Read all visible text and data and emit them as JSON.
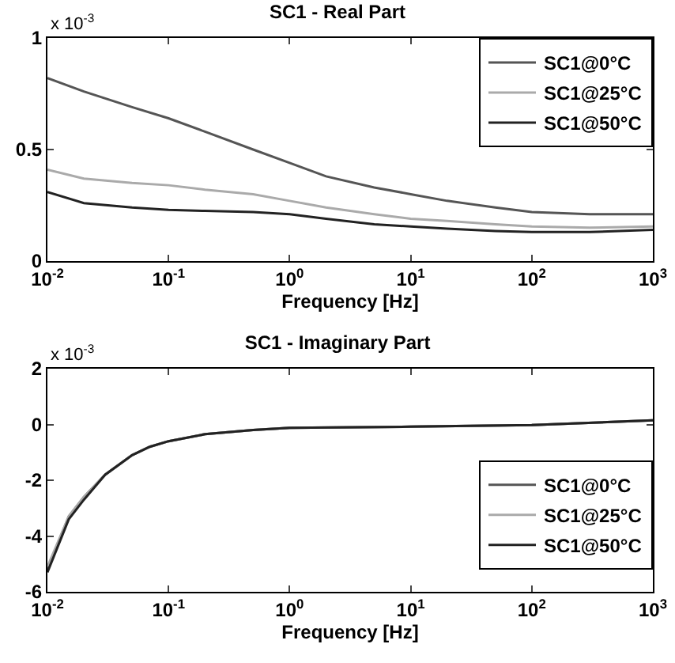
{
  "chart_data": [
    {
      "type": "line",
      "title": "SC1 - Real Part",
      "xlabel": "Frequency [Hz]",
      "annotations": [
        "x 10$^{-3}$"
      ],
      "log": "x",
      "grid": false,
      "legend": "top right",
      "marker": "none",
      "line_style": "solid",
      "xlim": [
        0.01,
        1000
      ],
      "xticks": [
        {
          "value": 0.01,
          "label": "10$^{-2}$"
        },
        {
          "value": 0.1,
          "label": "10$^{-1}$"
        },
        {
          "value": 1,
          "label": "10$^{0}$"
        },
        {
          "value": 10,
          "label": "10$^{1}$"
        },
        {
          "value": 100,
          "label": "10$^{2}$"
        },
        {
          "value": 1000,
          "label": "10$^{3}$"
        }
      ],
      "ylim": [
        0,
        1
      ],
      "yticks": [
        0,
        0.5,
        1
      ],
      "x": [
        0.01,
        0.02,
        0.05,
        0.1,
        0.2,
        0.5,
        1,
        2,
        5,
        10,
        20,
        50,
        100,
        300,
        1000
      ],
      "series": [
        {
          "name": "SC1@0°C",
          "color": "#555555",
          "values": [
            0.82,
            0.76,
            0.69,
            0.64,
            0.58,
            0.5,
            0.44,
            0.38,
            0.33,
            0.3,
            0.27,
            0.24,
            0.22,
            0.21,
            0.21
          ]
        },
        {
          "name": "SC1@25°C",
          "color": "#aaaaaa",
          "values": [
            0.41,
            0.37,
            0.35,
            0.34,
            0.32,
            0.3,
            0.27,
            0.24,
            0.21,
            0.19,
            0.18,
            0.165,
            0.155,
            0.15,
            0.155
          ]
        },
        {
          "name": "SC1@50°C",
          "color": "#222222",
          "values": [
            0.31,
            0.26,
            0.24,
            0.23,
            0.225,
            0.22,
            0.21,
            0.19,
            0.165,
            0.155,
            0.145,
            0.135,
            0.13,
            0.13,
            0.14
          ]
        }
      ]
    },
    {
      "type": "line",
      "title": "SC1 - Imaginary Part",
      "xlabel": "Frequency [Hz]",
      "annotations": [
        "x 10$^{-3}$"
      ],
      "log": "x",
      "grid": false,
      "legend": "right",
      "marker": "none",
      "line_style": "solid",
      "xlim": [
        0.01,
        1000
      ],
      "xticks": [
        {
          "value": 0.01,
          "label": "10$^{-2}$"
        },
        {
          "value": 0.1,
          "label": "10$^{-1}$"
        },
        {
          "value": 1,
          "label": "10$^{0}$"
        },
        {
          "value": 10,
          "label": "10$^{1}$"
        },
        {
          "value": 100,
          "label": "10$^{2}$"
        },
        {
          "value": 1000,
          "label": "10$^{3}$"
        }
      ],
      "ylim": [
        -6,
        2
      ],
      "yticks": [
        -6,
        -4,
        -2,
        0,
        2
      ],
      "x": [
        0.01,
        0.015,
        0.02,
        0.03,
        0.05,
        0.07,
        0.1,
        0.2,
        0.5,
        1,
        10,
        100,
        1000
      ],
      "series": [
        {
          "name": "SC1@0°C",
          "color": "#555555",
          "values": [
            -5.2,
            -3.3,
            -2.6,
            -1.8,
            -1.1,
            -0.8,
            -0.6,
            -0.35,
            -0.2,
            -0.12,
            -0.08,
            -0.02,
            0.15
          ]
        },
        {
          "name": "SC1@25°C",
          "color": "#aaaaaa",
          "values": [
            -5.1,
            -3.3,
            -2.6,
            -1.8,
            -1.1,
            -0.8,
            -0.6,
            -0.35,
            -0.2,
            -0.12,
            -0.08,
            -0.02,
            0.15
          ]
        },
        {
          "name": "SC1@50°C",
          "color": "#222222",
          "values": [
            -5.3,
            -3.4,
            -2.7,
            -1.8,
            -1.1,
            -0.8,
            -0.6,
            -0.35,
            -0.2,
            -0.12,
            -0.08,
            -0.02,
            0.15
          ]
        }
      ]
    }
  ]
}
